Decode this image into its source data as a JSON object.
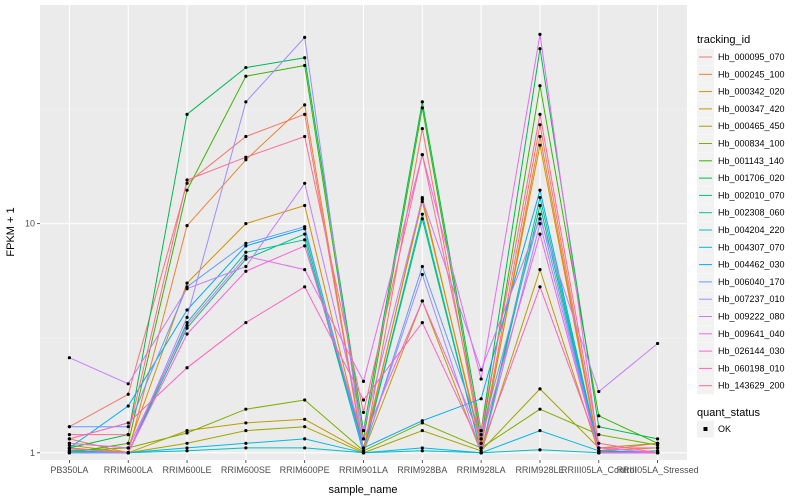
{
  "chart_data": {
    "type": "line",
    "xlabel": "sample_name",
    "ylabel": "FPKM + 1",
    "y_scale": "log10",
    "ylim": [
      0.93,
      90
    ],
    "y_ticks": [
      1,
      10
    ],
    "y_tick_labels": [
      "1",
      "10"
    ],
    "categories": [
      "PB350LA",
      "RRIM600LA",
      "RRIM600LE",
      "RRIM600SE",
      "RRIM600PE",
      "RRIM901LA",
      "RRIM928BA",
      "RRIM928LA",
      "RRIM928LE",
      "RRIII05LA_Control",
      "RRIII05LA_Stressed"
    ],
    "legend_title": "tracking_id",
    "legend2_title": "quant_status",
    "legend2_items": [
      {
        "label": "OK",
        "color": "#000000"
      }
    ],
    "series": [
      {
        "name": "Hb_000095_070",
        "color": "#F8766D",
        "values": [
          1.3,
          1.8,
          15.0,
          24.0,
          30.0,
          1.0,
          26.0,
          1.1,
          27.0,
          1.02,
          1.1
        ]
      },
      {
        "name": "Hb_000245_100",
        "color": "#EA8331",
        "values": [
          1.15,
          1.0,
          9.8,
          19.0,
          33.0,
          1.01,
          13.0,
          1.05,
          24.0,
          1.01,
          1.0
        ]
      },
      {
        "name": "Hb_000342_020",
        "color": "#D89000",
        "values": [
          1.1,
          1.05,
          5.5,
          10.0,
          12.0,
          1.05,
          12.5,
          1.1,
          22.0,
          1.02,
          1.05
        ]
      },
      {
        "name": "Hb_000347_420",
        "color": "#C09B00",
        "values": [
          1.05,
          1.0,
          1.25,
          1.35,
          1.4,
          1.01,
          4.6,
          1.0,
          6.3,
          1.0,
          1.0
        ]
      },
      {
        "name": "Hb_000465_450",
        "color": "#A3A500",
        "values": [
          1.08,
          1.0,
          1.1,
          1.25,
          1.3,
          1.0,
          1.25,
          1.02,
          1.9,
          1.05,
          1.1
        ]
      },
      {
        "name": "Hb_000834_100",
        "color": "#7CAE00",
        "values": [
          1.02,
          1.05,
          1.22,
          1.55,
          1.7,
          1.02,
          1.35,
          1.05,
          1.55,
          1.2,
          1.08
        ]
      },
      {
        "name": "Hb_001143_140",
        "color": "#39B600",
        "values": [
          1.0,
          1.1,
          14.0,
          44.0,
          49.0,
          1.15,
          32.0,
          1.15,
          40.0,
          1.45,
          1.1
        ]
      },
      {
        "name": "Hb_001706_020",
        "color": "#00BB4E",
        "values": [
          1.05,
          1.2,
          30.0,
          48.0,
          53.0,
          1.25,
          34.0,
          1.25,
          58.0,
          1.3,
          1.15
        ]
      },
      {
        "name": "Hb_002010_070",
        "color": "#00BF7D",
        "values": [
          1.0,
          1.0,
          3.5,
          7.0,
          9.0,
          1.0,
          10.5,
          1.0,
          12.0,
          1.0,
          1.0
        ]
      },
      {
        "name": "Hb_002308_060",
        "color": "#00C1A3",
        "values": [
          1.02,
          1.0,
          3.7,
          7.5,
          8.5,
          1.0,
          11.0,
          1.0,
          13.0,
          1.0,
          1.02
        ]
      },
      {
        "name": "Hb_004204_220",
        "color": "#00BFC4",
        "values": [
          1.0,
          1.0,
          1.02,
          1.05,
          1.05,
          1.0,
          1.02,
          1.0,
          1.03,
          1.0,
          1.0
        ]
      },
      {
        "name": "Hb_004307_070",
        "color": "#00B8E5",
        "values": [
          1.01,
          1.0,
          1.05,
          1.1,
          1.15,
          1.0,
          1.05,
          1.0,
          1.25,
          1.02,
          1.0
        ]
      },
      {
        "name": "Hb_004462_030",
        "color": "#00A9FF",
        "values": [
          1.05,
          1.6,
          4.2,
          8.0,
          9.5,
          1.05,
          1.38,
          1.72,
          14.0,
          1.02,
          1.0
        ]
      },
      {
        "name": "Hb_006040_170",
        "color": "#619CFF",
        "values": [
          1.3,
          1.3,
          5.3,
          8.2,
          9.7,
          1.01,
          6.5,
          1.2,
          11.0,
          1.0,
          1.0
        ]
      },
      {
        "name": "Hb_007237_010",
        "color": "#9F8CFF",
        "values": [
          1.0,
          1.0,
          3.9,
          34.0,
          65.0,
          1.02,
          6.0,
          1.0,
          10.0,
          1.0,
          1.0
        ]
      },
      {
        "name": "Hb_009222_080",
        "color": "#C77CFF",
        "values": [
          2.6,
          2.0,
          5.2,
          6.5,
          15.0,
          1.25,
          12.8,
          2.3,
          10.5,
          1.85,
          3.0
        ]
      },
      {
        "name": "Hb_009641_040",
        "color": "#E76BF3",
        "values": [
          1.1,
          1.05,
          3.6,
          7.2,
          6.3,
          2.05,
          20.0,
          2.1,
          67.0,
          1.05,
          1.0
        ]
      },
      {
        "name": "Hb_026144_030",
        "color": "#FA62DB",
        "values": [
          1.04,
          1.0,
          3.3,
          6.2,
          8.0,
          1.15,
          4.6,
          1.15,
          9.0,
          1.0,
          1.0
        ]
      },
      {
        "name": "Hb_060198_010",
        "color": "#FF62BC",
        "values": [
          1.15,
          1.35,
          2.35,
          3.7,
          5.3,
          1.7,
          3.7,
          1.05,
          5.3,
          1.05,
          1.05
        ]
      },
      {
        "name": "Hb_143629_200",
        "color": "#FF6C91",
        "values": [
          1.2,
          1.2,
          15.5,
          19.5,
          24.0,
          1.5,
          20.0,
          1.25,
          30.0,
          1.1,
          1.0
        ]
      }
    ]
  }
}
